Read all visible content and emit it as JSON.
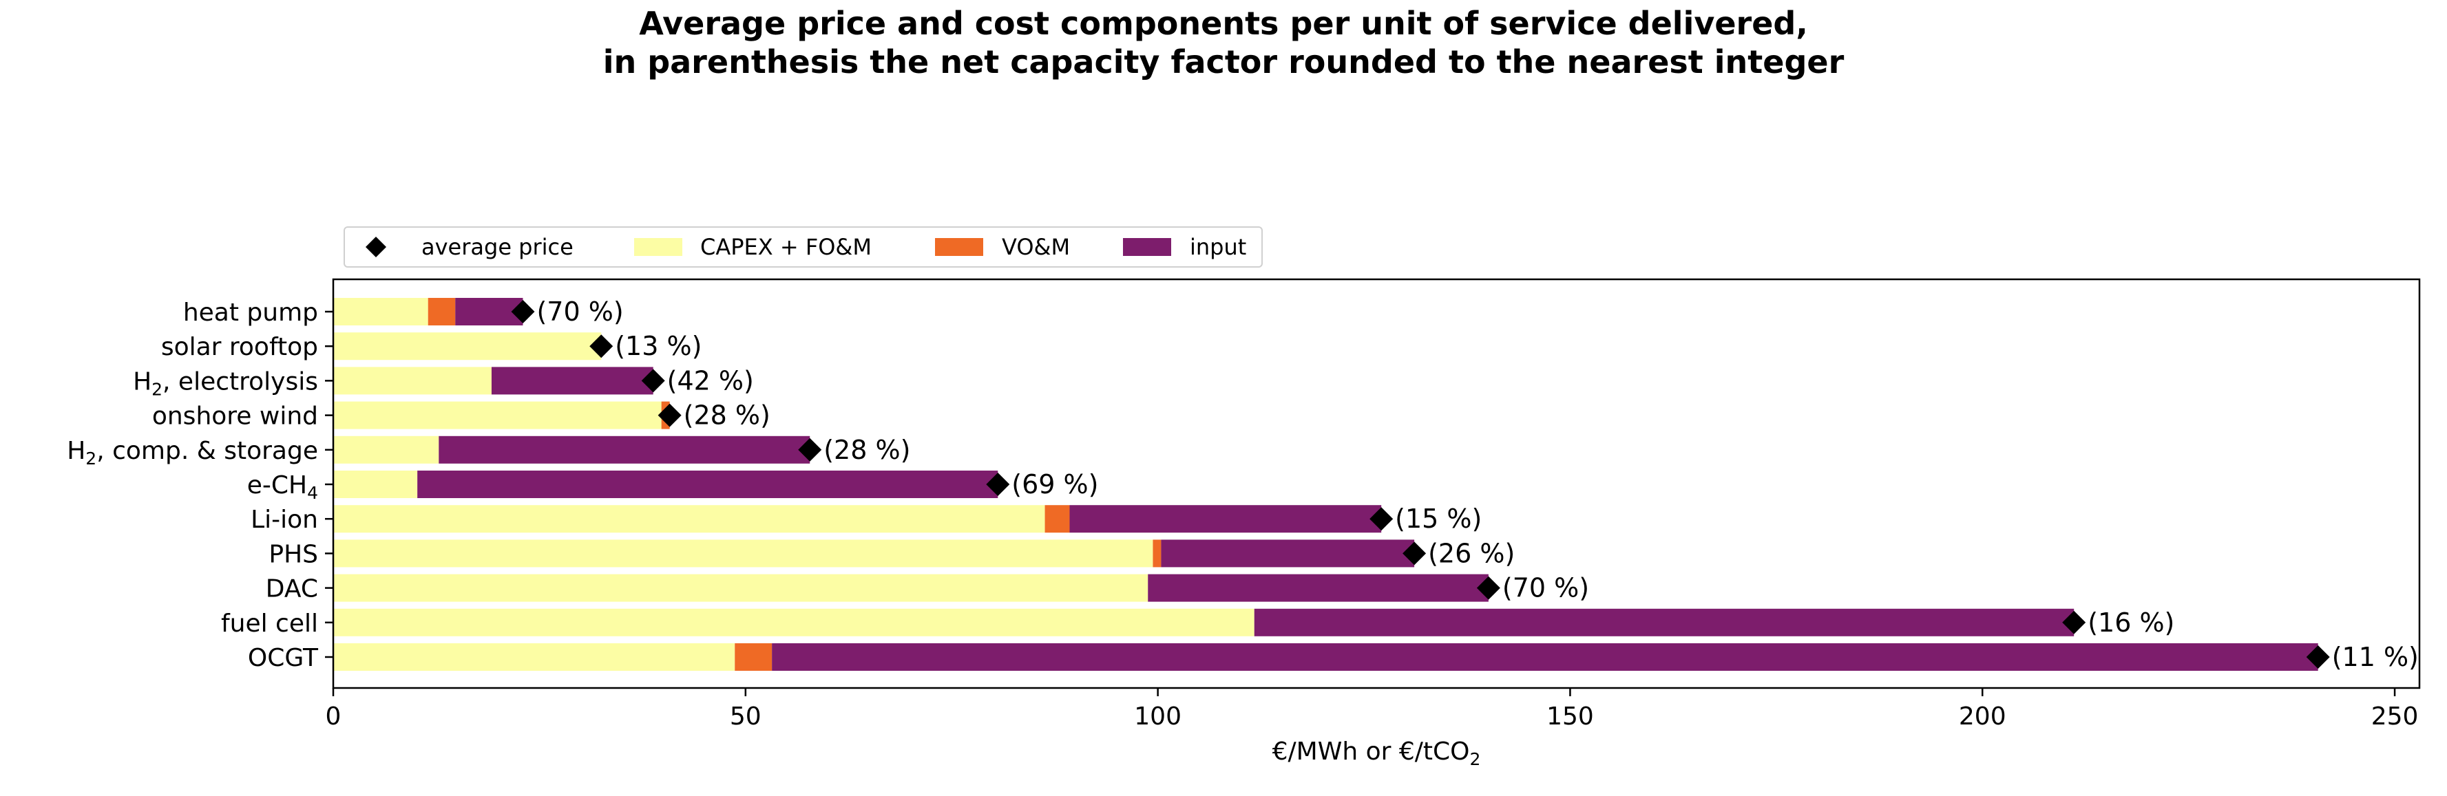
{
  "chart_data": {
    "type": "bar",
    "orientation": "horizontal",
    "stacked": true,
    "title": [
      "Average price and cost components per unit of service delivered,",
      "in parenthesis the net capacity factor rounded to the nearest integer"
    ],
    "xlabel": "€/MWh or €/tCO₂",
    "ylabel": "",
    "xlim": [
      0,
      253
    ],
    "xticks": [
      0,
      50,
      100,
      150,
      200,
      250
    ],
    "xtick_labels": [
      "0",
      "50",
      "100",
      "150",
      "200",
      "250"
    ],
    "grid": false,
    "legend_placement": "top-left, above plot",
    "categories": [
      "heat pump",
      "solar rooftop",
      "H₂, electrolysis",
      "onshore wind",
      "H₂, comp. & storage",
      "e-CH₄",
      "Li-ion",
      "PHS",
      "DAC",
      "fuel cell",
      "OCGT"
    ],
    "series": [
      {
        "name": "CAPEX + FO&M",
        "color": "#fcfda4",
        "values": [
          11.5,
          32.5,
          19.2,
          39.8,
          12.8,
          10.2,
          86.3,
          99.4,
          98.8,
          111.7,
          48.7
        ]
      },
      {
        "name": "VO&M",
        "color": "#ef6a25",
        "values": [
          3.3,
          0,
          0,
          1.0,
          0,
          0,
          3.0,
          1.0,
          0,
          0,
          4.5
        ]
      },
      {
        "name": "input",
        "color": "#7d1d6c",
        "values": [
          8.2,
          0,
          19.6,
          0,
          45.0,
          70.4,
          37.8,
          30.7,
          41.3,
          99.4,
          187.5
        ]
      }
    ],
    "markers": {
      "name": "average price",
      "color": "#000000",
      "shape": "diamond",
      "values": [
        23.0,
        32.5,
        38.8,
        40.8,
        57.8,
        80.6,
        127.1,
        131.1,
        140.1,
        211.1,
        240.7
      ]
    },
    "annotations": [
      "(70 %)",
      "(13 %)",
      "(42 %)",
      "(28 %)",
      "(28 %)",
      "(69 %)",
      "(15 %)",
      "(26 %)",
      "(70 %)",
      "(16 %)",
      "(11 %)"
    ]
  }
}
